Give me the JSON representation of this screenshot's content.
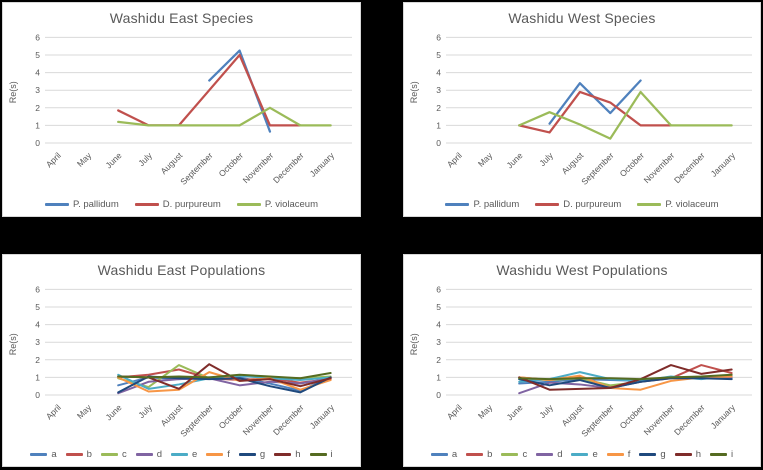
{
  "chart_data": [
    {
      "type": "line",
      "title": "Washidu East Species",
      "ylabel": "Re(s)",
      "xlabel": "",
      "categories": [
        "April",
        "May",
        "June",
        "July",
        "August",
        "September",
        "October",
        "November",
        "December",
        "January"
      ],
      "ylim": [
        0,
        6
      ],
      "yticks": [
        0,
        1,
        2,
        3,
        4,
        5,
        6
      ],
      "grid": true,
      "legend_position": "bottom",
      "series": [
        {
          "name": "P. pallidum",
          "color": "#4F81BD",
          "values": [
            null,
            null,
            null,
            null,
            null,
            3.55,
            5.25,
            0.65,
            null,
            null
          ]
        },
        {
          "name": "D. purpureum",
          "color": "#C0504D",
          "values": [
            null,
            null,
            1.85,
            1.0,
            1.0,
            3.0,
            5.0,
            1.0,
            1.0,
            null
          ]
        },
        {
          "name": "P. violaceum",
          "color": "#9BBB59",
          "values": [
            null,
            null,
            1.2,
            1.0,
            1.0,
            1.0,
            1.0,
            2.0,
            1.0,
            1.0
          ]
        }
      ]
    },
    {
      "type": "line",
      "title": "Washidu West Species",
      "ylabel": "Re(s)",
      "xlabel": "",
      "categories": [
        "April",
        "May",
        "June",
        "July",
        "August",
        "September",
        "October",
        "November",
        "December",
        "January"
      ],
      "ylim": [
        0,
        6
      ],
      "yticks": [
        0,
        1,
        2,
        3,
        4,
        5,
        6
      ],
      "grid": true,
      "legend_position": "bottom",
      "series": [
        {
          "name": "P. pallidum",
          "color": "#4F81BD",
          "values": [
            null,
            null,
            null,
            1.1,
            3.4,
            1.7,
            3.55,
            null,
            null,
            null
          ]
        },
        {
          "name": "D. purpureum",
          "color": "#C0504D",
          "values": [
            null,
            null,
            1.0,
            0.6,
            2.9,
            2.3,
            1.0,
            1.0,
            null,
            null
          ]
        },
        {
          "name": "P. violaceum",
          "color": "#9BBB59",
          "values": [
            null,
            null,
            1.0,
            1.75,
            1.05,
            0.25,
            2.9,
            1.0,
            1.0,
            1.0
          ]
        }
      ]
    },
    {
      "type": "line",
      "title": "Washidu East Populations",
      "ylabel": "Re(s)",
      "xlabel": "",
      "categories": [
        "April",
        "May",
        "June",
        "July",
        "August",
        "September",
        "October",
        "November",
        "December",
        "January"
      ],
      "ylim": [
        0,
        6
      ],
      "yticks": [
        0,
        1,
        2,
        3,
        4,
        5,
        6
      ],
      "grid": true,
      "legend_position": "bottom",
      "series": [
        {
          "name": "a",
          "color": "#4F81BD",
          "values": [
            null,
            null,
            0.55,
            1.0,
            0.9,
            1.0,
            1.0,
            0.65,
            0.25,
            1.0
          ]
        },
        {
          "name": "b",
          "color": "#C0504D",
          "values": [
            null,
            null,
            1.0,
            1.15,
            1.45,
            0.95,
            0.85,
            0.95,
            0.7,
            0.9
          ]
        },
        {
          "name": "c",
          "color": "#9BBB59",
          "values": [
            null,
            null,
            0.95,
            0.45,
            1.7,
            0.95,
            1.1,
            1.0,
            0.95,
            1.05
          ]
        },
        {
          "name": "d",
          "color": "#8064A2",
          "values": [
            null,
            null,
            0.1,
            0.75,
            0.9,
            0.95,
            0.55,
            0.75,
            0.65,
            0.95
          ]
        },
        {
          "name": "e",
          "color": "#4BACC6",
          "values": [
            null,
            null,
            1.15,
            0.35,
            0.6,
            0.95,
            1.1,
            0.95,
            0.85,
            1.0
          ]
        },
        {
          "name": "f",
          "color": "#F79646",
          "values": [
            null,
            null,
            1.0,
            0.2,
            0.3,
            1.3,
            0.8,
            0.95,
            0.3,
            0.85
          ]
        },
        {
          "name": "g",
          "color": "#1F497D",
          "values": [
            null,
            null,
            0.15,
            1.05,
            0.95,
            0.9,
            0.95,
            0.5,
            0.15,
            1.0
          ]
        },
        {
          "name": "h",
          "color": "#7F2C2A",
          "values": [
            null,
            null,
            1.05,
            1.0,
            0.35,
            1.75,
            0.8,
            0.9,
            0.5,
            0.95
          ]
        },
        {
          "name": "i",
          "color": "#556B21",
          "values": [
            null,
            null,
            1.05,
            1.0,
            1.05,
            1.0,
            1.15,
            1.05,
            0.95,
            1.25
          ]
        }
      ]
    },
    {
      "type": "line",
      "title": "Washidu West Populations",
      "ylabel": "Re(s)",
      "xlabel": "",
      "categories": [
        "April",
        "May",
        "June",
        "July",
        "August",
        "September",
        "October",
        "November",
        "December",
        "January"
      ],
      "ylim": [
        0,
        6
      ],
      "yticks": [
        0,
        1,
        2,
        3,
        4,
        5,
        6
      ],
      "grid": true,
      "legend_position": "bottom",
      "series": [
        {
          "name": "a",
          "color": "#4F81BD",
          "values": [
            null,
            null,
            0.65,
            0.75,
            0.9,
            0.85,
            0.8,
            1.0,
            0.95,
            0.95
          ]
        },
        {
          "name": "b",
          "color": "#C0504D",
          "values": [
            null,
            null,
            1.0,
            0.85,
            1.0,
            0.45,
            0.75,
            0.95,
            1.7,
            1.25
          ]
        },
        {
          "name": "c",
          "color": "#9BBB59",
          "values": [
            null,
            null,
            0.9,
            0.85,
            0.95,
            0.55,
            0.75,
            1.0,
            1.0,
            1.05
          ]
        },
        {
          "name": "d",
          "color": "#8064A2",
          "values": [
            null,
            null,
            0.1,
            0.7,
            0.6,
            0.4,
            0.75,
            1.0,
            1.0,
            1.0
          ]
        },
        {
          "name": "e",
          "color": "#4BACC6",
          "values": [
            null,
            null,
            0.75,
            0.9,
            1.3,
            0.9,
            0.8,
            1.05,
            0.9,
            1.1
          ]
        },
        {
          "name": "f",
          "color": "#F79646",
          "values": [
            null,
            null,
            1.0,
            0.85,
            1.1,
            0.4,
            0.3,
            0.8,
            1.0,
            1.05
          ]
        },
        {
          "name": "g",
          "color": "#1F497D",
          "values": [
            null,
            null,
            0.9,
            0.55,
            0.85,
            0.4,
            0.75,
            0.95,
            0.95,
            0.9
          ]
        },
        {
          "name": "h",
          "color": "#7F2C2A",
          "values": [
            null,
            null,
            1.0,
            0.3,
            0.35,
            0.4,
            0.9,
            1.7,
            1.2,
            1.45
          ]
        },
        {
          "name": "i",
          "color": "#556B21",
          "values": [
            null,
            null,
            0.95,
            0.9,
            0.95,
            0.95,
            0.9,
            1.0,
            1.05,
            1.15
          ]
        }
      ]
    }
  ],
  "style": {
    "gridline_color": "#D9D9D9",
    "text_color": "#595959",
    "background": "#000000",
    "panel_background": "#FFFFFF"
  }
}
